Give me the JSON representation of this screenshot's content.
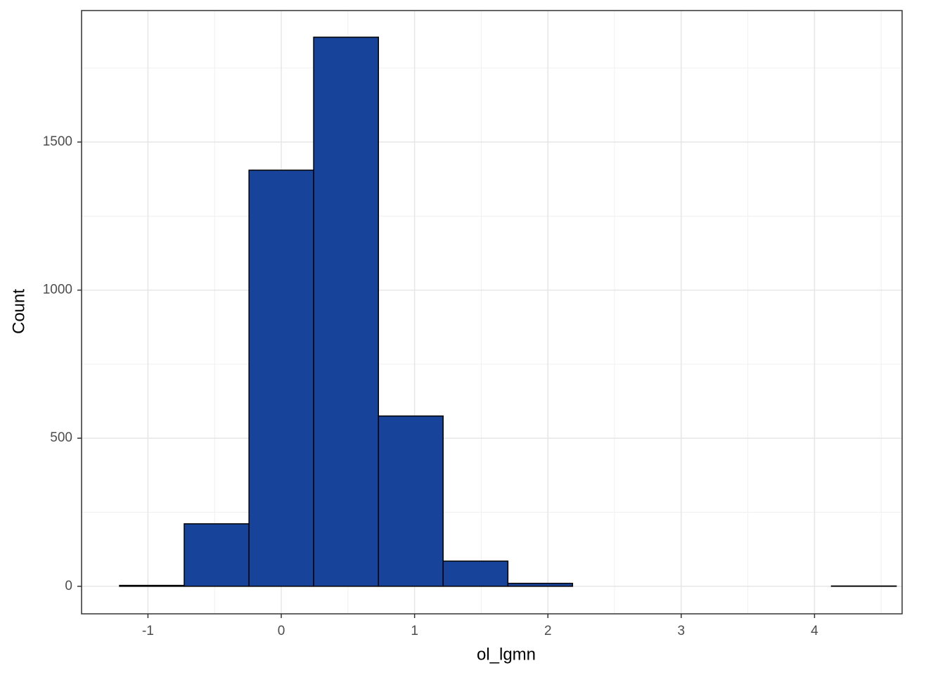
{
  "chart_data": {
    "type": "histogram",
    "x_label": "ol_lgmn",
    "y_label": "Count",
    "bins": [
      -1.213,
      -0.728,
      -0.242,
      0.243,
      0.729,
      1.214,
      1.7,
      2.185,
      2.671,
      3.156,
      3.642,
      4.127,
      4.613
    ],
    "values": [
      3,
      211,
      1405,
      1854,
      575,
      85,
      10,
      0,
      0,
      0,
      0,
      1
    ],
    "color": "#17449a",
    "edge_color": "#000000",
    "xlim": [
      -1.498,
      4.657
    ],
    "ylim": [
      -93,
      1944
    ],
    "xticks": [
      -1,
      0,
      1,
      2,
      3,
      4
    ],
    "yticks": [
      0,
      500,
      1000,
      1500
    ],
    "x_minor_grid": [
      -1.5,
      -0.5,
      0.5,
      1.5,
      2.5,
      3.5,
      4.5
    ],
    "y_minor_grid": [
      250,
      750,
      1250,
      1750
    ],
    "grid": true
  }
}
